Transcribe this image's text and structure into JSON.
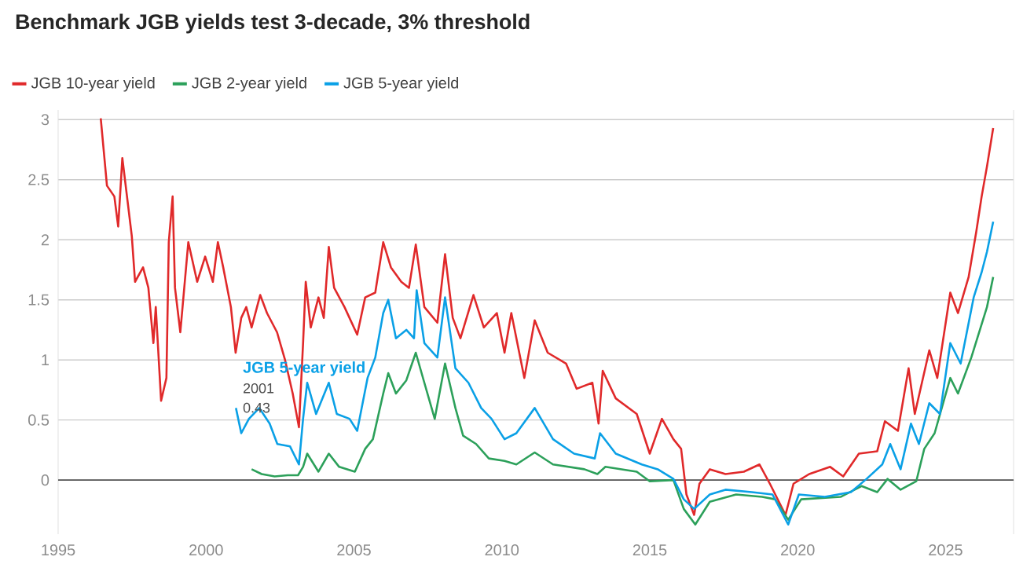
{
  "chart_data": {
    "type": "line",
    "title": "Benchmark JGB yields test 3-decade, 3% threshold",
    "xlim": [
      1995,
      2027.3
    ],
    "ylim": [
      -0.45,
      3.08
    ],
    "xticks": [
      1995,
      2000,
      2005,
      2010,
      2015,
      2020,
      2025
    ],
    "yticks": [
      0,
      0.5,
      1,
      1.5,
      2,
      2.5,
      3
    ],
    "grid": "y",
    "legend": "top left",
    "marker": "none",
    "line_style": "solid",
    "ref_lines": [
      {
        "axis": "y",
        "value": 0,
        "color": "#555555"
      }
    ],
    "annotations": [
      "JGB 5-year yield",
      "2001",
      "0.43"
    ],
    "series": [
      {
        "name": "JGB 10-year yield",
        "color": "#e0292a",
        "x": [
          1996.44,
          1996.65,
          1996.9,
          1997.03,
          1997.17,
          1997.49,
          1997.6,
          1997.87,
          1998.05,
          1998.22,
          1998.3,
          1998.48,
          1998.66,
          1998.74,
          1998.87,
          1998.95,
          1999.13,
          1999.4,
          1999.7,
          1999.97,
          2000.23,
          2000.4,
          2000.58,
          2000.84,
          2001.0,
          2001.19,
          2001.36,
          2001.54,
          2001.83,
          2002.06,
          2002.4,
          2002.67,
          2002.93,
          2003.14,
          2003.28,
          2003.37,
          2003.54,
          2003.8,
          2003.98,
          2004.15,
          2004.33,
          2004.68,
          2005.11,
          2005.38,
          2005.72,
          2005.99,
          2006.25,
          2006.6,
          2006.86,
          2007.09,
          2007.38,
          2007.82,
          2008.08,
          2008.34,
          2008.6,
          2009.04,
          2009.39,
          2009.83,
          2010.09,
          2010.32,
          2010.76,
          2011.11,
          2011.55,
          2012.17,
          2012.53,
          2013.06,
          2013.27,
          2013.41,
          2013.85,
          2014.56,
          2015.0,
          2015.41,
          2015.8,
          2016.06,
          2016.24,
          2016.5,
          2016.68,
          2017.03,
          2017.56,
          2018.18,
          2018.71,
          2019.06,
          2019.59,
          2019.86,
          2020.39,
          2021.1,
          2021.54,
          2022.07,
          2022.69,
          2022.95,
          2023.39,
          2023.75,
          2023.96,
          2024.45,
          2024.72,
          2025.16,
          2025.42,
          2025.78,
          2026.04,
          2026.22,
          2026.4,
          2026.61
        ],
        "values": [
          3.01,
          2.45,
          2.36,
          2.11,
          2.68,
          2.03,
          1.65,
          1.77,
          1.6,
          1.14,
          1.44,
          0.66,
          0.85,
          1.98,
          2.36,
          1.6,
          1.23,
          1.98,
          1.65,
          1.86,
          1.65,
          1.98,
          1.77,
          1.44,
          1.06,
          1.35,
          1.44,
          1.27,
          1.54,
          1.39,
          1.23,
          1.0,
          0.72,
          0.44,
          1.14,
          1.65,
          1.27,
          1.52,
          1.35,
          1.94,
          1.6,
          1.44,
          1.21,
          1.52,
          1.56,
          1.98,
          1.77,
          1.65,
          1.6,
          1.96,
          1.44,
          1.31,
          1.88,
          1.35,
          1.18,
          1.54,
          1.27,
          1.39,
          1.06,
          1.39,
          0.85,
          1.33,
          1.06,
          0.97,
          0.76,
          0.81,
          0.47,
          0.91,
          0.68,
          0.55,
          0.22,
          0.51,
          0.34,
          0.26,
          -0.12,
          -0.29,
          -0.03,
          0.09,
          0.05,
          0.07,
          0.13,
          -0.03,
          -0.29,
          -0.03,
          0.05,
          0.11,
          0.03,
          0.22,
          0.24,
          0.49,
          0.41,
          0.93,
          0.55,
          1.08,
          0.85,
          1.56,
          1.39,
          1.69,
          2.07,
          2.36,
          2.61,
          2.93
        ]
      },
      {
        "name": "JGB 2-year yield",
        "color": "#2ca05a",
        "x": [
          2001.54,
          2001.88,
          2002.32,
          2002.76,
          2003.11,
          2003.28,
          2003.42,
          2003.8,
          2004.15,
          2004.5,
          2005.03,
          2005.38,
          2005.64,
          2005.99,
          2006.16,
          2006.42,
          2006.77,
          2007.09,
          2007.38,
          2007.73,
          2008.08,
          2008.43,
          2008.69,
          2009.13,
          2009.56,
          2010.09,
          2010.49,
          2011.11,
          2011.73,
          2012.79,
          2013.23,
          2013.5,
          2014.56,
          2015.0,
          2015.8,
          2016.15,
          2016.54,
          2017.03,
          2017.92,
          2018.8,
          2019.24,
          2019.68,
          2020.12,
          2021.45,
          2022.16,
          2022.69,
          2023.04,
          2023.48,
          2024.01,
          2024.28,
          2024.63,
          2025.16,
          2025.42,
          2025.87,
          2026.4,
          2026.61
        ],
        "values": [
          0.09,
          0.05,
          0.03,
          0.04,
          0.04,
          0.11,
          0.22,
          0.07,
          0.22,
          0.11,
          0.07,
          0.26,
          0.34,
          0.72,
          0.89,
          0.72,
          0.83,
          1.06,
          0.81,
          0.51,
          0.97,
          0.6,
          0.37,
          0.3,
          0.18,
          0.16,
          0.13,
          0.23,
          0.13,
          0.09,
          0.05,
          0.11,
          0.07,
          -0.01,
          0.0,
          -0.24,
          -0.37,
          -0.18,
          -0.12,
          -0.14,
          -0.16,
          -0.33,
          -0.16,
          -0.14,
          -0.05,
          -0.1,
          0.01,
          -0.08,
          -0.01,
          0.26,
          0.39,
          0.85,
          0.72,
          1.02,
          1.44,
          1.69
        ]
      },
      {
        "name": "JGB 5-year yield",
        "color": "#0aa0e6",
        "x": [
          2001.01,
          2001.19,
          2001.45,
          2001.8,
          2002.15,
          2002.41,
          2002.84,
          2003.14,
          2003.28,
          2003.42,
          2003.72,
          2004.15,
          2004.42,
          2004.85,
          2005.11,
          2005.46,
          2005.72,
          2005.99,
          2006.16,
          2006.42,
          2006.77,
          2007.03,
          2007.12,
          2007.38,
          2007.82,
          2008.08,
          2008.43,
          2008.87,
          2009.3,
          2009.65,
          2010.09,
          2010.49,
          2011.11,
          2011.73,
          2012.44,
          2013.14,
          2013.32,
          2013.85,
          2014.73,
          2015.27,
          2015.8,
          2016.15,
          2016.5,
          2017.03,
          2017.56,
          2018.45,
          2019.15,
          2019.68,
          2020.04,
          2020.92,
          2021.8,
          2022.33,
          2022.86,
          2023.13,
          2023.48,
          2023.83,
          2024.1,
          2024.45,
          2024.81,
          2025.16,
          2025.51,
          2025.95,
          2026.22,
          2026.4,
          2026.61
        ],
        "values": [
          0.6,
          0.39,
          0.51,
          0.6,
          0.47,
          0.3,
          0.28,
          0.13,
          0.51,
          0.81,
          0.55,
          0.81,
          0.55,
          0.51,
          0.41,
          0.85,
          1.02,
          1.39,
          1.5,
          1.18,
          1.25,
          1.18,
          1.58,
          1.14,
          1.02,
          1.52,
          0.93,
          0.81,
          0.6,
          0.51,
          0.34,
          0.39,
          0.6,
          0.34,
          0.22,
          0.18,
          0.39,
          0.22,
          0.13,
          0.09,
          0.01,
          -0.16,
          -0.24,
          -0.12,
          -0.08,
          -0.1,
          -0.12,
          -0.37,
          -0.12,
          -0.14,
          -0.1,
          0.01,
          0.13,
          0.3,
          0.09,
          0.47,
          0.3,
          0.64,
          0.55,
          1.14,
          0.97,
          1.52,
          1.73,
          1.9,
          2.15
        ]
      }
    ]
  }
}
